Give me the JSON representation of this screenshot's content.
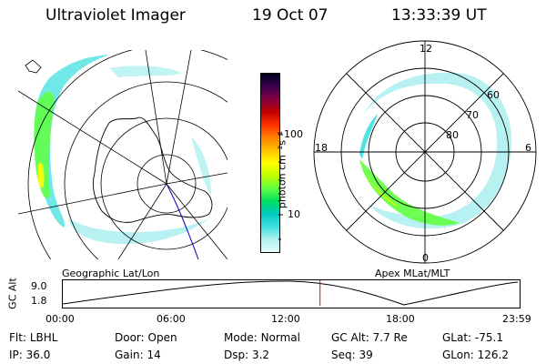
{
  "header": {
    "title": "Ultraviolet Imager",
    "date": "19 Oct 07",
    "time": "13:33:39 UT"
  },
  "colorbar": {
    "unit_label": "photon cm⁻²s⁻¹",
    "ticks": [
      "100",
      "10"
    ],
    "colors": [
      "#000020",
      "#3a0050",
      "#800040",
      "#c00000",
      "#ff3000",
      "#ff8000",
      "#ffc000",
      "#ffff00",
      "#c0ff00",
      "#60ff40",
      "#00e060",
      "#00c8c0",
      "#40e0e0",
      "#b0f0f0",
      "#e8ffff"
    ]
  },
  "left_map": {
    "caption": "Geographic Lat/Lon"
  },
  "right_map": {
    "caption": "Apex MLat/MLT",
    "mlt_labels": {
      "top": "12",
      "left": "18",
      "right": "6",
      "bottom": "0"
    },
    "lat_labels": [
      "60",
      "70",
      "80"
    ]
  },
  "altitude_plot": {
    "ylabel": "GC Alt",
    "yticks": [
      "9.0",
      "1.8"
    ],
    "xticks": [
      "00:00",
      "06:00",
      "12:00",
      "18:00",
      "23:59"
    ],
    "current_marker_hours": 13.56
  },
  "footer": {
    "row1": [
      {
        "key": "Flt:",
        "value": "LBHL"
      },
      {
        "key": "Door:",
        "value": "Open"
      },
      {
        "key": "Mode:",
        "value": "Normal"
      },
      {
        "key": "GC Alt:",
        "value": "7.7 Re"
      },
      {
        "key": "GLat:",
        "value": "-75.1"
      }
    ],
    "row2": [
      {
        "key": "IP:",
        "value": "36.0"
      },
      {
        "key": "Gain:",
        "value": "14"
      },
      {
        "key": "Dsp:",
        "value": "3.2"
      },
      {
        "key": "Seq:",
        "value": "39"
      },
      {
        "key": "GLon:",
        "value": "126.2"
      }
    ]
  }
}
